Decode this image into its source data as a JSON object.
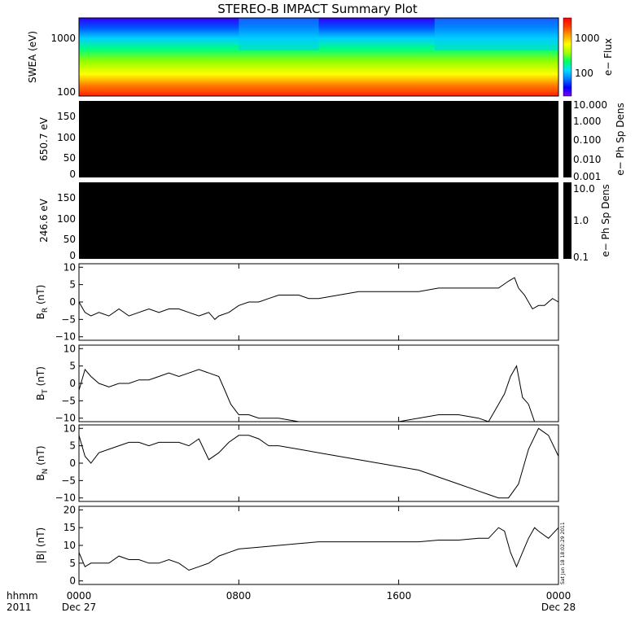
{
  "title": "STEREO-B IMPACT Summary Plot",
  "footer": {
    "hhmm_label": "hhmm",
    "year_label": "2011",
    "start_date": "Dec 27",
    "end_date": "Dec 28",
    "stamp": "Sat Jun 18 18:02:29 2011"
  },
  "colors": {
    "spectrogram_scale": [
      "#7f00ff",
      "#0000ff",
      "#0080ff",
      "#00e0ff",
      "#00ff60",
      "#a0ff00",
      "#ffff00",
      "#ffa000",
      "#ff4000",
      "#ff0000"
    ],
    "panel_fill": "#000000",
    "line": "#000000"
  },
  "chart_data": [
    {
      "type": "heatmap",
      "ylabel": "SWEA (eV)",
      "y_scale": "log",
      "yticks": [
        "1000",
        "100"
      ],
      "colorbar": {
        "label": "e− Flux",
        "ticks": [
          "1000",
          "100"
        ],
        "scale": "log"
      },
      "description_bands": [
        {
          "x": 0,
          "level": "low"
        },
        {
          "x": 8,
          "level": "high"
        },
        {
          "x": 12,
          "level": "low"
        },
        {
          "x": 17.8,
          "level": "high"
        },
        {
          "x": 24,
          "level": "low"
        }
      ]
    },
    {
      "type": "heatmap",
      "ylabel": "650.7 eV",
      "yticks": [
        "150",
        "100",
        "50",
        "0"
      ],
      "ylim": [
        0,
        180
      ],
      "colorbar": {
        "label": "e− Ph Sp Dens",
        "ticks": [
          "10.000",
          "1.000",
          "0.100",
          "0.010",
          "0.001"
        ],
        "scale": "log"
      }
    },
    {
      "type": "heatmap",
      "ylabel": "246.6 eV",
      "yticks": [
        "150",
        "100",
        "50",
        "0"
      ],
      "ylim": [
        0,
        180
      ],
      "colorbar": {
        "label": "e− Ph Sp Dens",
        "ticks": [
          "10.0",
          "1.0",
          "0.1"
        ],
        "scale": "log"
      }
    },
    {
      "type": "line",
      "ylabel": "B",
      "ylabel_sub": "R",
      "ylabel_unit": "(nT)",
      "yticks": [
        "10",
        "5",
        "0",
        "−5",
        "−10"
      ],
      "ylim": [
        -11,
        11
      ],
      "x": [
        0,
        0.3,
        0.6,
        1,
        1.5,
        2,
        2.5,
        3,
        3.5,
        4,
        4.5,
        5,
        5.5,
        6,
        6.5,
        6.8,
        7,
        7.5,
        8,
        8.5,
        9,
        9.5,
        10,
        10.5,
        11,
        11.5,
        12,
        13,
        14,
        15,
        16,
        17,
        18,
        19,
        20,
        21,
        21.5,
        21.8,
        22,
        22.3,
        22.7,
        23,
        23.3,
        23.7,
        24
      ],
      "values": [
        0,
        -3,
        -4,
        -3,
        -4,
        -2,
        -4,
        -3,
        -2,
        -3,
        -2,
        -2,
        -3,
        -4,
        -3,
        -5,
        -4,
        -3,
        -1,
        0,
        0,
        1,
        2,
        2,
        2,
        1,
        1,
        2,
        3,
        3,
        3,
        3,
        4,
        4,
        4,
        4,
        6,
        7,
        4,
        2,
        -2,
        -1,
        -1,
        1,
        0
      ]
    },
    {
      "type": "line",
      "ylabel": "B",
      "ylabel_sub": "T",
      "ylabel_unit": "(nT)",
      "yticks": [
        "10",
        "5",
        "0",
        "−5",
        "−10"
      ],
      "ylim": [
        -11,
        11
      ],
      "x": [
        0,
        0.3,
        0.6,
        1,
        1.5,
        2,
        2.5,
        3,
        3.5,
        4,
        4.5,
        5,
        5.5,
        6,
        6.5,
        7,
        7.3,
        7.6,
        8,
        8.5,
        9,
        10,
        11,
        12,
        13,
        14,
        15,
        16,
        17,
        18,
        19,
        20,
        20.5,
        21,
        21.3,
        21.6,
        21.9,
        22.2,
        22.5,
        22.8,
        23,
        23.5,
        24
      ],
      "values": [
        -2,
        4,
        2,
        0,
        -1,
        0,
        0,
        1,
        1,
        2,
        3,
        2,
        3,
        4,
        3,
        2,
        -2,
        -6,
        -9,
        -9,
        -10,
        -10,
        -11,
        -11,
        -11,
        -11,
        -11,
        -11,
        -10,
        -9,
        -9,
        -10,
        -11,
        -6,
        -3,
        2,
        5,
        -4,
        -6,
        -11,
        -11,
        -11,
        -11
      ]
    },
    {
      "type": "line",
      "ylabel": "B",
      "ylabel_sub": "N",
      "ylabel_unit": "(nT)",
      "yticks": [
        "10",
        "5",
        "0",
        "−5",
        "−10"
      ],
      "ylim": [
        -11,
        11
      ],
      "x": [
        0,
        0.3,
        0.6,
        1,
        1.5,
        2,
        2.5,
        3,
        3.5,
        4,
        4.5,
        5,
        5.5,
        6,
        6.5,
        7,
        7.5,
        8,
        8.5,
        9,
        9.5,
        10,
        11,
        12,
        13,
        14,
        15,
        16,
        17,
        18,
        19,
        20,
        20.5,
        21,
        21.5,
        22,
        22.5,
        23,
        23.5,
        24
      ],
      "values": [
        8,
        2,
        0,
        3,
        4,
        5,
        6,
        6,
        5,
        6,
        6,
        6,
        5,
        7,
        1,
        3,
        6,
        8,
        8,
        7,
        5,
        5,
        4,
        3,
        2,
        1,
        0,
        -1,
        -2,
        -4,
        -6,
        -8,
        -9,
        -10,
        -10,
        -6,
        4,
        10,
        8,
        2
      ]
    },
    {
      "type": "line",
      "ylabel": "|B|",
      "ylabel_unit": "(nT)",
      "yticks": [
        "20",
        "15",
        "10",
        "5",
        "0"
      ],
      "ylim": [
        -1,
        21
      ],
      "x": [
        0,
        0.3,
        0.6,
        1,
        1.5,
        2,
        2.5,
        3,
        3.5,
        4,
        4.5,
        5,
        5.5,
        6,
        6.5,
        7,
        7.5,
        8,
        9,
        10,
        11,
        12,
        13,
        14,
        15,
        16,
        17,
        18,
        19,
        20,
        20.5,
        21,
        21.3,
        21.6,
        21.9,
        22.2,
        22.5,
        22.8,
        23,
        23.5,
        24
      ],
      "values": [
        8,
        4,
        5,
        5,
        5,
        7,
        6,
        6,
        5,
        5,
        6,
        5,
        3,
        4,
        5,
        7,
        8,
        9,
        9.5,
        10,
        10.5,
        11,
        11,
        11,
        11,
        11,
        11,
        11.5,
        11.5,
        12,
        12,
        15,
        14,
        8,
        4,
        8,
        12,
        15,
        14,
        12,
        15
      ]
    }
  ],
  "x_axis": {
    "ticks": [
      "0000",
      "0800",
      "1600",
      "0000"
    ],
    "tick_hours": [
      0,
      8,
      16,
      24
    ]
  }
}
